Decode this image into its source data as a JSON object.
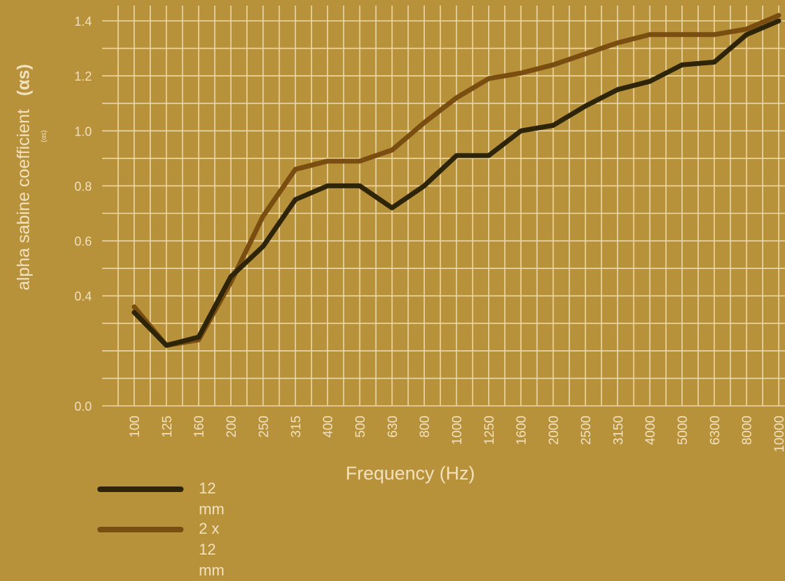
{
  "colors": {
    "background": "#b8913b",
    "grid": "#ecd9a8",
    "text": "#f1e2bd",
    "series_12mm": "#2e2509",
    "series_2x12mm": "#7a4e10"
  },
  "chart_data": {
    "type": "line",
    "xlabel": "Frequency (Hz)",
    "ylabel": "alpha sabine coefficient",
    "ylabel_symbol": "(αs)",
    "ylabel_sub": "(αs)",
    "categories": [
      "100",
      "125",
      "160",
      "200",
      "250",
      "315",
      "400",
      "500",
      "630",
      "800",
      "1000",
      "1250",
      "1600",
      "2000",
      "2500",
      "3150",
      "4000",
      "5000",
      "6300",
      "8000",
      "10000"
    ],
    "ylim": [
      0.0,
      1.4
    ],
    "yticks": [
      "0.0",
      "0.4",
      "0.6",
      "0.8",
      "1.0",
      "1.2",
      "1.4"
    ],
    "grid": true,
    "legend_position": "bottom-left",
    "series": [
      {
        "name": "12 mm",
        "color": "#2e2509",
        "values": [
          0.34,
          0.22,
          0.25,
          0.47,
          0.58,
          0.75,
          0.8,
          0.8,
          0.72,
          0.8,
          0.91,
          0.91,
          1.0,
          1.02,
          1.09,
          1.15,
          1.18,
          1.24,
          1.25,
          1.35,
          1.4
        ]
      },
      {
        "name": "2 x 12 mm",
        "color": "#7a4e10",
        "values": [
          0.36,
          0.22,
          0.24,
          0.45,
          0.69,
          0.86,
          0.89,
          0.89,
          0.93,
          1.03,
          1.12,
          1.19,
          1.21,
          1.24,
          1.28,
          1.32,
          1.35,
          1.35,
          1.35,
          1.37,
          1.42
        ]
      }
    ]
  }
}
